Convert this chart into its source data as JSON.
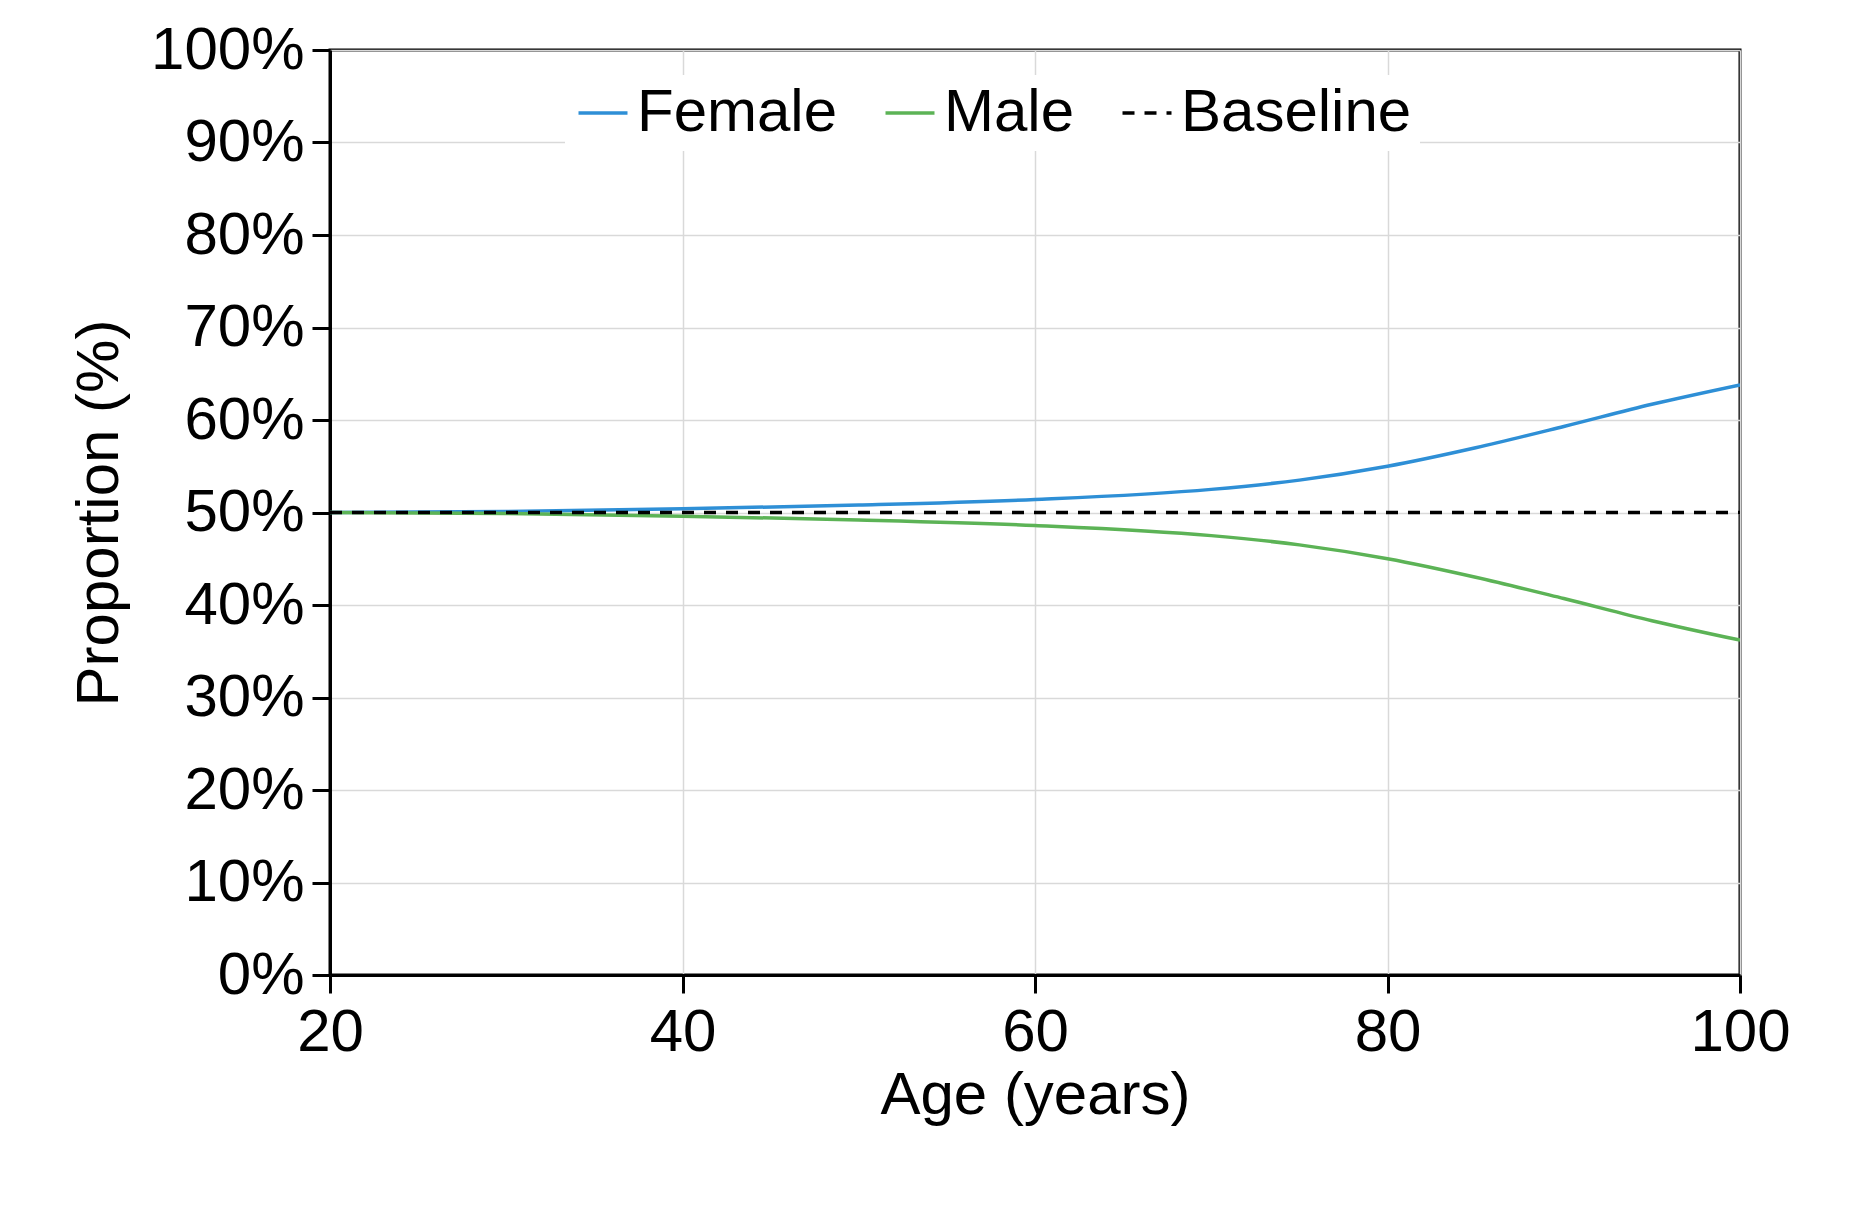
{
  "chart_data": {
    "type": "line",
    "xlabel": "Age (years)",
    "ylabel": "Proportion (%)",
    "x": [
      20,
      30,
      40,
      50,
      60,
      70,
      75,
      80,
      85,
      90,
      95,
      100
    ],
    "series": [
      {
        "name": "Female",
        "color": "#2e8fd6",
        "values": [
          50,
          50.1,
          50.4,
          50.8,
          51.4,
          52.5,
          53.5,
          55,
          57,
          59.3,
          61.7,
          63.8
        ]
      },
      {
        "name": "Male",
        "color": "#5cb356",
        "values": [
          50,
          49.9,
          49.6,
          49.2,
          48.6,
          47.5,
          46.5,
          45,
          43,
          40.7,
          38.3,
          36.2
        ]
      },
      {
        "name": "Baseline",
        "color": "#000000",
        "line_style": "dashed",
        "values": [
          50,
          50,
          50,
          50,
          50,
          50,
          50,
          50,
          50,
          50,
          50,
          50
        ]
      }
    ],
    "xlim": [
      20,
      100
    ],
    "xticks": [
      20,
      40,
      60,
      80,
      100
    ],
    "ylim": [
      0,
      100
    ],
    "yticks": [
      {
        "value": 0,
        "label": "0%"
      },
      {
        "value": 10,
        "label": "10%"
      },
      {
        "value": 20,
        "label": "20%"
      },
      {
        "value": 30,
        "label": "30%"
      },
      {
        "value": 40,
        "label": "40%"
      },
      {
        "value": 50,
        "label": "50%"
      },
      {
        "value": 60,
        "label": "60%"
      },
      {
        "value": 70,
        "label": "70%"
      },
      {
        "value": 80,
        "label": "80%"
      },
      {
        "value": 90,
        "label": "90%"
      },
      {
        "value": 100,
        "label": "100%"
      }
    ],
    "grid": true,
    "legend": "top",
    "line_style": "solid"
  }
}
